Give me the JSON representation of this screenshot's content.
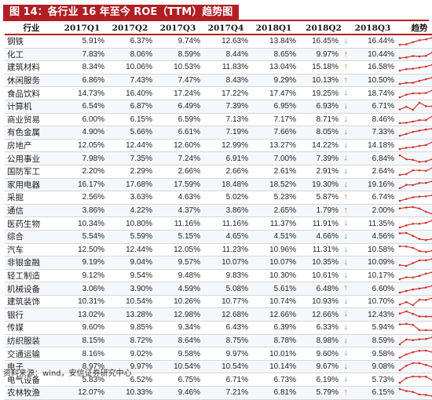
{
  "title": "图 14：各行业 16 年至今 ROE（TTM）趋势图",
  "source": "资料来源：wind，安信证券研究中心",
  "colors": {
    "accent": "#b01f24",
    "up_arrow": "#e27b17",
    "down_arrow": "#3f95c8",
    "sparkline": "#d0312d"
  },
  "icons": {
    "up": "up-arrow-icon",
    "down": "down-arrow-icon"
  },
  "chart_data": {
    "type": "table",
    "columns": [
      "行业",
      "2017Q1",
      "2017Q2",
      "2017Q3",
      "2017Q4",
      "2018Q1",
      "2018Q2",
      "2018Q3",
      "趋势"
    ],
    "rows": [
      {
        "name": "钢铁",
        "values": [
          "5.91%",
          "6.37%",
          "9.74%",
          "12.63%",
          "13.84%",
          "16.45%",
          "16.44%"
        ],
        "arrow": "down",
        "trend": [
          5.91,
          6.37,
          9.74,
          12.63,
          13.84,
          16.45,
          16.44
        ]
      },
      {
        "name": "化工",
        "values": [
          "7.83%",
          "8.06%",
          "8.59%",
          "8.44%",
          "8.65%",
          "9.97%",
          "10.44%"
        ],
        "arrow": "up",
        "trend": [
          7.83,
          8.06,
          8.59,
          8.44,
          8.65,
          9.97,
          10.44
        ]
      },
      {
        "name": "建筑材料",
        "values": [
          "8.34%",
          "10.06%",
          "10.53%",
          "11.83%",
          "13.04%",
          "15.18%",
          "16.58%"
        ],
        "arrow": "up",
        "trend": [
          8.34,
          10.06,
          10.53,
          11.83,
          13.04,
          15.18,
          16.58
        ]
      },
      {
        "name": "休闲服务",
        "values": [
          "6.86%",
          "7.43%",
          "7.47%",
          "8.43%",
          "9.29%",
          "10.13%",
          "10.50%"
        ],
        "arrow": "up",
        "trend": [
          6.86,
          7.43,
          7.47,
          8.43,
          9.29,
          10.13,
          10.5
        ]
      },
      {
        "name": "食品饮料",
        "values": [
          "14.73%",
          "16.40%",
          "17.24%",
          "17.22%",
          "17.47%",
          "19.25%",
          "18.74%"
        ],
        "arrow": "down",
        "trend": [
          14.73,
          16.4,
          17.24,
          17.22,
          17.47,
          19.25,
          18.74
        ]
      },
      {
        "name": "计算机",
        "values": [
          "6.54%",
          "6.87%",
          "6.49%",
          "7.39%",
          "6.95%",
          "6.93%",
          "6.71%"
        ],
        "arrow": "down",
        "trend": [
          6.54,
          6.87,
          6.49,
          7.39,
          6.95,
          6.93,
          6.71
        ]
      },
      {
        "name": "商业贸易",
        "values": [
          "6.00%",
          "6.15%",
          "6.59%",
          "7.13%",
          "7.17%",
          "8.71%",
          "8.46%"
        ],
        "arrow": "down",
        "trend": [
          6.0,
          6.15,
          6.59,
          7.13,
          7.17,
          8.71,
          8.46
        ]
      },
      {
        "name": "有色金属",
        "values": [
          "4.90%",
          "5.66%",
          "6.61%",
          "7.19%",
          "7.66%",
          "8.05%",
          "7.33%"
        ],
        "arrow": "down",
        "trend": [
          4.9,
          5.66,
          6.61,
          7.19,
          7.66,
          8.05,
          7.33
        ]
      },
      {
        "name": "房地产",
        "values": [
          "12.05%",
          "12.44%",
          "12.60%",
          "12.99%",
          "13.27%",
          "14.22%",
          "14.18%"
        ],
        "arrow": "down",
        "trend": [
          12.05,
          12.44,
          12.6,
          12.99,
          13.27,
          14.22,
          14.18
        ]
      },
      {
        "name": "公用事业",
        "values": [
          "7.98%",
          "7.35%",
          "7.24%",
          "6.91%",
          "7.00%",
          "7.39%",
          "6.84%"
        ],
        "arrow": "down",
        "trend": [
          7.98,
          7.35,
          7.24,
          6.91,
          7.0,
          7.39,
          6.84
        ]
      },
      {
        "name": "国防军工",
        "values": [
          "2.20%",
          "2.29%",
          "2.66%",
          "2.66%",
          "2.61%",
          "2.91%",
          "2.64%"
        ],
        "arrow": "down",
        "trend": [
          2.2,
          2.29,
          2.66,
          2.66,
          2.61,
          2.91,
          2.64
        ]
      },
      {
        "name": "家用电器",
        "values": [
          "16.17%",
          "17.68%",
          "17.59%",
          "18.48%",
          "18.52%",
          "19.30%",
          "19.16%"
        ],
        "arrow": "down",
        "trend": [
          16.17,
          17.68,
          17.59,
          18.48,
          18.52,
          19.3,
          19.16
        ]
      },
      {
        "name": "采掘",
        "values": [
          "2.56%",
          "3.63%",
          "4.63%",
          "5.02%",
          "5.23%",
          "5.87%",
          "6.74%"
        ],
        "arrow": "up",
        "trend": [
          2.56,
          3.63,
          4.63,
          5.02,
          5.23,
          5.87,
          6.74
        ]
      },
      {
        "name": "通信",
        "values": [
          "3.86%",
          "4.22%",
          "4.37%",
          "3.86%",
          "2.65%",
          "1.79%",
          "2.00%"
        ],
        "arrow": "up",
        "trend": [
          3.86,
          4.22,
          4.37,
          3.86,
          2.65,
          1.79,
          2.0
        ]
      },
      {
        "name": "医药生物",
        "values": [
          "10.34%",
          "10.80%",
          "11.16%",
          "11.16%",
          "11.37%",
          "11.91%",
          "11.35%"
        ],
        "arrow": "down",
        "trend": [
          10.34,
          10.8,
          11.16,
          11.16,
          11.37,
          11.91,
          11.35
        ]
      },
      {
        "name": "综合",
        "values": [
          "5.54%",
          "5.59%",
          "5.15%",
          "4.65%",
          "4.51%",
          "4.66%",
          "4.56%"
        ],
        "arrow": "down",
        "trend": [
          5.54,
          5.59,
          5.15,
          4.65,
          4.51,
          4.66,
          4.56
        ]
      },
      {
        "name": "汽车",
        "values": [
          "12.50%",
          "12.44%",
          "12.05%",
          "11.23%",
          "10.96%",
          "11.31%",
          "10.58%"
        ],
        "arrow": "down",
        "trend": [
          12.5,
          12.44,
          12.05,
          11.23,
          10.96,
          11.31,
          10.58
        ]
      },
      {
        "name": "非银金融",
        "values": [
          "9.19%",
          "9.04%",
          "9.57%",
          "10.07%",
          "10.07%",
          "10.35%",
          "10.09%"
        ],
        "arrow": "down",
        "trend": [
          9.19,
          9.04,
          9.57,
          10.07,
          10.07,
          10.35,
          10.09
        ]
      },
      {
        "name": "轻工制造",
        "values": [
          "9.12%",
          "9.54%",
          "9.48%",
          "9.83%",
          "10.30%",
          "10.61%",
          "10.17%"
        ],
        "arrow": "down",
        "trend": [
          9.12,
          9.54,
          9.48,
          9.83,
          10.3,
          10.61,
          10.17
        ]
      },
      {
        "name": "机械设备",
        "values": [
          "3.06%",
          "3.90%",
          "4.59%",
          "5.08%",
          "5.61%",
          "6.48%",
          "6.60%"
        ],
        "arrow": "up",
        "trend": [
          3.06,
          3.9,
          4.59,
          5.08,
          5.61,
          6.48,
          6.6
        ]
      },
      {
        "name": "建筑装饰",
        "values": [
          "10.31%",
          "10.54%",
          "10.26%",
          "10.77%",
          "10.74%",
          "10.93%",
          "10.70%"
        ],
        "arrow": "down",
        "trend": [
          10.31,
          10.54,
          10.26,
          10.77,
          10.74,
          10.93,
          10.7
        ]
      },
      {
        "name": "银行",
        "values": [
          "13.02%",
          "13.28%",
          "12.98%",
          "12.68%",
          "12.66%",
          "12.66%",
          "12.43%"
        ],
        "arrow": "down",
        "trend": [
          13.02,
          13.28,
          12.98,
          12.68,
          12.66,
          12.66,
          12.43
        ]
      },
      {
        "name": "传媒",
        "values": [
          "9.60%",
          "9.85%",
          "9.34%",
          "6.43%",
          "6.39%",
          "6.33%",
          "5.94%"
        ],
        "arrow": "down",
        "trend": [
          9.6,
          9.85,
          9.34,
          6.43,
          6.39,
          6.33,
          5.94
        ]
      },
      {
        "name": "纺织服装",
        "values": [
          "8.15%",
          "8.72%",
          "8.64%",
          "8.75%",
          "8.78%",
          "8.98%",
          "8.59%"
        ],
        "arrow": "down",
        "trend": [
          8.15,
          8.72,
          8.64,
          8.75,
          8.78,
          8.98,
          8.59
        ]
      },
      {
        "name": "交通运输",
        "values": [
          "8.16%",
          "9.02%",
          "9.58%",
          "9.97%",
          "10.01%",
          "9.60%",
          "9.58%"
        ],
        "arrow": "down",
        "trend": [
          8.16,
          9.02,
          9.58,
          9.97,
          10.01,
          9.6,
          9.58
        ]
      },
      {
        "name": "电子",
        "values": [
          "8.97%",
          "9.97%",
          "10.54%",
          "10.54%",
          "10.14%",
          "9.67%",
          "9.08%"
        ],
        "arrow": "down",
        "trend": [
          8.97,
          9.97,
          10.54,
          10.54,
          10.14,
          9.67,
          9.08
        ]
      },
      {
        "name": "电气设备",
        "values": [
          "5.83%",
          "6.52%",
          "6.75%",
          "6.71%",
          "6.73%",
          "6.19%",
          "5.73%"
        ],
        "arrow": "down",
        "trend": [
          5.83,
          6.52,
          6.75,
          6.71,
          6.73,
          6.19,
          5.73
        ]
      },
      {
        "name": "农林牧渔",
        "values": [
          "12.07%",
          "10.33%",
          "9.46%",
          "7.21%",
          "6.81%",
          "5.79%",
          "6.15%"
        ],
        "arrow": "up",
        "trend": [
          12.07,
          10.33,
          9.46,
          7.21,
          6.81,
          5.79,
          6.15
        ]
      }
    ]
  }
}
